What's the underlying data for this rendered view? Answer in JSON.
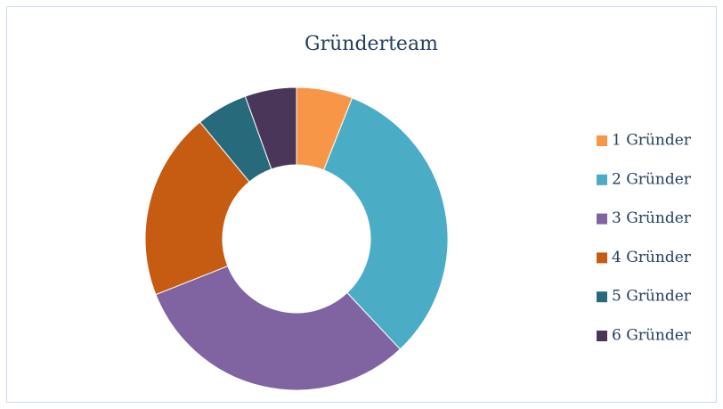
{
  "chart_data": {
    "type": "pie",
    "title": "Gründerteam",
    "categories": [
      "1 Gründer",
      "2 Gründer",
      "3 Gründer",
      "4 Gründer",
      "5 Gründer",
      "6 Gründer"
    ],
    "values": [
      6,
      32,
      31,
      20,
      5.5,
      5.5
    ],
    "colors": [
      "#f79646",
      "#4bacc6",
      "#8064a2",
      "#c65b12",
      "#276a7c",
      "#4a3659"
    ],
    "legend": "right"
  }
}
